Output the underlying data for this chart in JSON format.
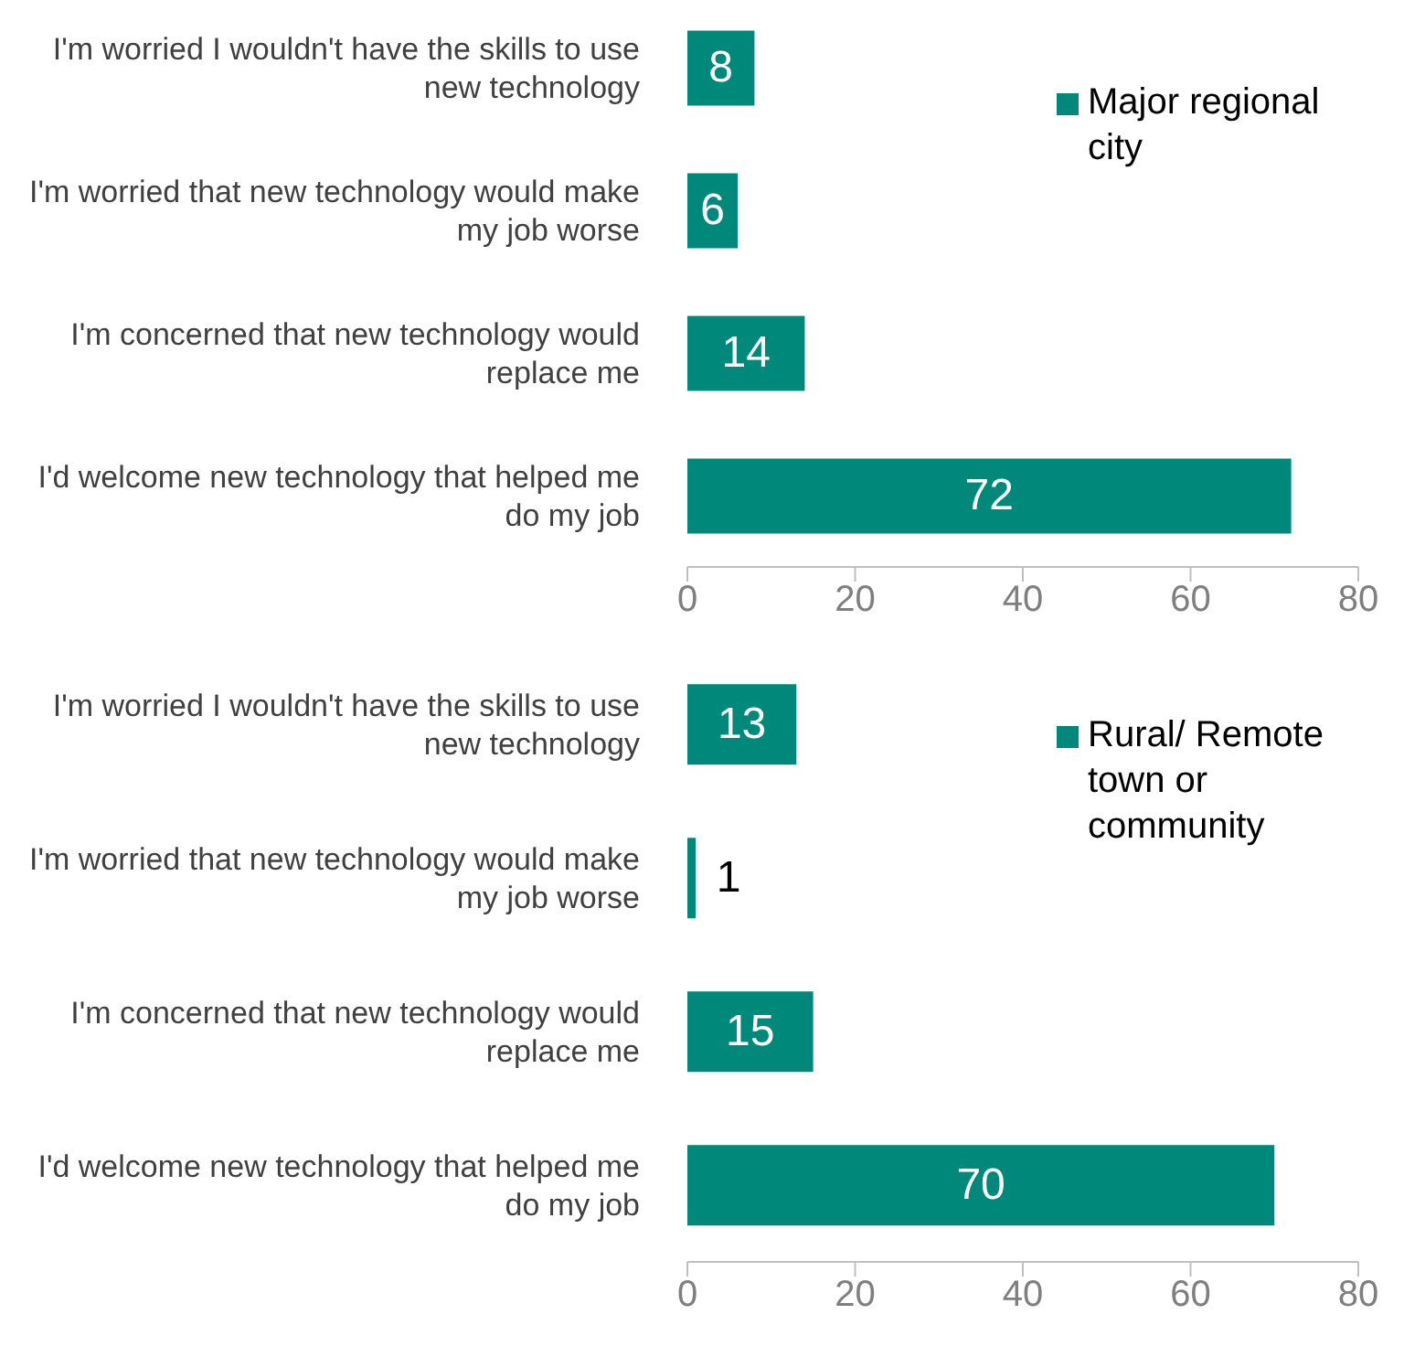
{
  "chart_data": [
    {
      "type": "bar",
      "orientation": "horizontal",
      "categories": [
        "I'm worried I wouldn't have the skills to use new technology",
        "I'm worried that new technology would make my job worse",
        "I'm concerned that new technology would replace me",
        "I'd welcome new technology that helped me do my job"
      ],
      "series": [
        {
          "name": "Major regional city",
          "color": "#00897b",
          "values": [
            8,
            6,
            14,
            72
          ]
        }
      ],
      "xlim": [
        0,
        80
      ],
      "xticks": [
        0,
        20,
        40,
        60,
        80
      ],
      "data_labels": true,
      "legend": "top right",
      "grid": false
    },
    {
      "type": "bar",
      "orientation": "horizontal",
      "categories": [
        "I'm worried I wouldn't have the skills to use new technology",
        "I'm worried that new technology would make my job worse",
        "I'm concerned that new technology would replace me",
        "I'd welcome new technology that helped me do my job"
      ],
      "series": [
        {
          "name": "Rural/ Remote town or community",
          "color": "#00897b",
          "values": [
            13,
            1,
            15,
            70
          ]
        }
      ],
      "xlim": [
        0,
        80
      ],
      "xticks": [
        0,
        20,
        40,
        60,
        80
      ],
      "data_labels": true,
      "legend": "top right",
      "grid": false
    }
  ]
}
